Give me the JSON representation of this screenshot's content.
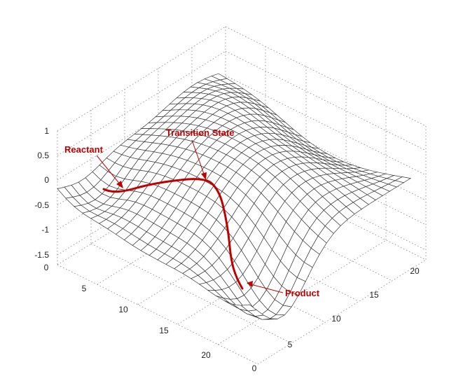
{
  "figure": {
    "z_ticks": [
      "1",
      "0.5",
      "0",
      "-0.5",
      "-1",
      "-1.5"
    ],
    "x_ticks": [
      "0",
      "5",
      "10",
      "15",
      "20"
    ],
    "y_ticks": [
      "0",
      "5",
      "10",
      "15",
      "20"
    ],
    "annotations": {
      "reactant": "Reactant",
      "transition_state": "Transition State",
      "product": "Product"
    },
    "colors": {
      "mesh": "#3a3a3a",
      "path": "#c00000",
      "grid": "#9a9a9a"
    }
  }
}
